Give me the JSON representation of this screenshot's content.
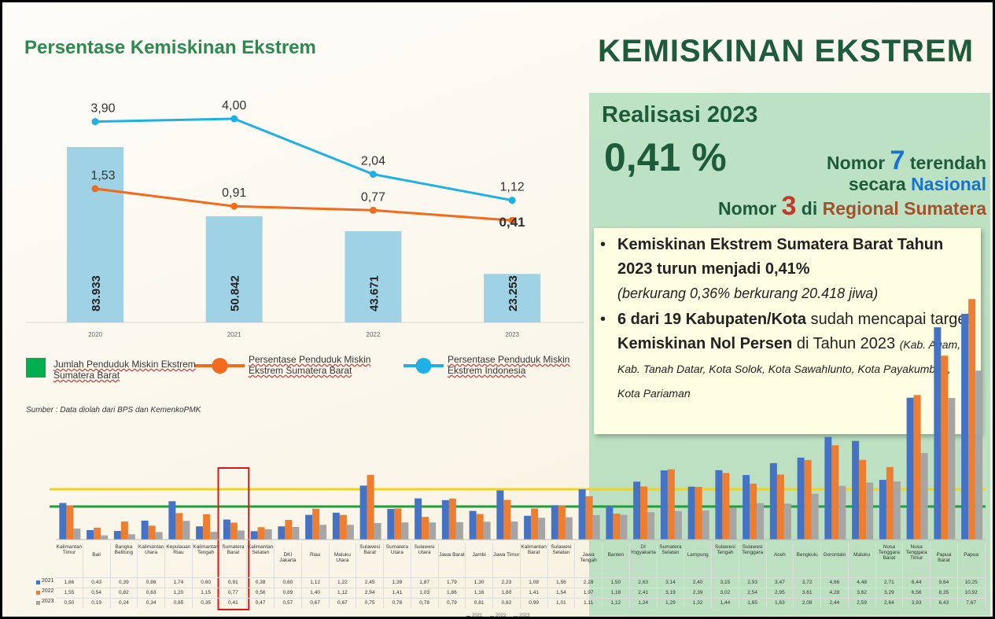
{
  "title": "Persentase Kemiskinan Ekstrem",
  "heading": "KEMISKINAN EKSTREM",
  "source": "Sumber : Data diolah dari BPS dan KemenkoPMK",
  "panel": {
    "realisasi": "Realisasi 2023",
    "value": "0,41 %",
    "rank_national": [
      "Nomor ",
      "7",
      " terendah"
    ],
    "rank_national_2": [
      "secara ",
      "Nasional"
    ],
    "rank_regional": [
      "Nomor ",
      "3",
      " di ",
      "Regional Sumatera"
    ],
    "bullet_1": [
      "Kemiskinan Ekstrem Sumatera Barat Tahun 2023 turun menjadi 0,41%",
      "(berkurang 0,36% berkurang 20.418 jiwa)"
    ],
    "bullet_2": [
      "6 dari 19 Kabupaten/Kota",
      " sudah mencapai target ",
      "Kemiskinan Nol Persen",
      " di Tahun 2023 ",
      "(Kab. Agam, Kab. Tanah Datar, Kota Solok, Kota Sawahlunto, Kota Payakumbuh, Kota Pariaman"
    ]
  },
  "chart_data": [
    {
      "type": "bar-line",
      "categories": [
        "2020",
        "2021",
        "2022",
        "2023"
      ],
      "series": [
        {
          "name": "Jumlah Penduduk Miskin Ekstrem Sumatera Barat",
          "type": "bar",
          "color": "#9fd2e4",
          "legend_color": "#00b050",
          "values": [
            83933,
            50842,
            43671,
            23253
          ],
          "value_labels": [
            "83.933",
            "50.842",
            "43.671",
            "23.253"
          ]
        },
        {
          "name": "Persentase Penduduk Miskin Ekstrem Sumatera Barat",
          "type": "line",
          "color": "#f26b1d",
          "values": [
            1.53,
            0.91,
            0.77,
            0.41
          ],
          "value_labels": [
            "1,53",
            "0,91",
            "0,77",
            "0,41"
          ]
        },
        {
          "name": "Persentase Penduduk Miskin Ekstrem Indonesia",
          "type": "line",
          "color": "#1fb0e6",
          "values": [
            3.9,
            4.0,
            2.04,
            1.12
          ],
          "value_labels": [
            "3,90",
            "4,00",
            "2,04",
            "1,12"
          ]
        }
      ]
    },
    {
      "type": "bar",
      "categories": [
        "Kalimantan Timur",
        "Bali",
        "Bangka Belitung",
        "Kalimantan Utara",
        "Kepulauan Riau",
        "Kalimantan Tengah",
        "Sumatera Barat",
        "Kalimantan Selatan",
        "DKI Jakarta",
        "Riau",
        "Maluku Utara",
        "Sulawesi Barat",
        "Sumatera Utara",
        "Sulawesi Utara",
        "Jawa Barat",
        "Jambi",
        "Jawa Timur",
        "Kalimantan Barat",
        "Sulawesi Selatan",
        "Jawa Tengah",
        "Banten",
        "DI Yogyakarta",
        "Sumatera Selatan",
        "Lampung",
        "Sulawesi Tengah",
        "Sulawesi Tenggara",
        "Aceh",
        "Bengkulu",
        "Gorontalo",
        "Maluku",
        "Nusa Tenggara Barat",
        "Nusa Tenggara Timur",
        "Papua Barat",
        "Papua"
      ],
      "highlight": "Sumatera Barat",
      "series": [
        {
          "name": "2021",
          "color": "#4472c4",
          "values": [
            1.66,
            0.43,
            0.39,
            0.86,
            1.74,
            0.6,
            0.91,
            0.38,
            0.6,
            1.12,
            1.22,
            2.45,
            1.39,
            1.87,
            1.79,
            1.3,
            2.23,
            1.08,
            1.56,
            2.28,
            1.5,
            2.63,
            3.14,
            2.4,
            3.15,
            2.93,
            3.47,
            3.72,
            4.66,
            4.48,
            2.71,
            6.44,
            9.64,
            10.25
          ],
          "value_labels": [
            "1,66",
            "0,43",
            "0,39",
            "0,86",
            "1,74",
            "0,60",
            "0,91",
            "0,38",
            "0,60",
            "1,12",
            "1,22",
            "2,45",
            "1,39",
            "1,87",
            "1,79",
            "1,30",
            "2,23",
            "1,08",
            "1,56",
            "2,28",
            "1,50",
            "2,63",
            "3,14",
            "2,40",
            "3,15",
            "2,93",
            "3,47",
            "3,72",
            "4,66",
            "4,48",
            "2,71",
            "6,44",
            "9,64",
            "10,25"
          ]
        },
        {
          "name": "2022",
          "color": "#ed7d31",
          "values": [
            1.55,
            0.54,
            0.82,
            0.63,
            1.2,
            1.15,
            0.77,
            0.56,
            0.89,
            1.4,
            1.12,
            2.94,
            1.41,
            1.03,
            1.86,
            1.16,
            1.8,
            1.41,
            1.54,
            1.97,
            1.18,
            2.41,
            3.19,
            2.39,
            3.02,
            2.54,
            2.95,
            3.61,
            4.28,
            3.62,
            3.29,
            6.56,
            8.35,
            10.92
          ],
          "value_labels": [
            "1,55",
            "0,54",
            "0,82",
            "0,63",
            "1,20",
            "1,15",
            "0,77",
            "0,56",
            "0,89",
            "1,40",
            "1,12",
            "2,94",
            "1,41",
            "1,03",
            "1,86",
            "1,16",
            "1,80",
            "1,41",
            "1,54",
            "1,97",
            "1,18",
            "2,41",
            "3,19",
            "2,39",
            "3,02",
            "2,54",
            "2,95",
            "3,61",
            "4,28",
            "3,62",
            "3,29",
            "6,56",
            "8,35",
            "10,92"
          ]
        },
        {
          "name": "2023",
          "color": "#a5a5a5",
          "values": [
            0.5,
            0.19,
            0.24,
            0.34,
            0.85,
            0.35,
            0.41,
            0.47,
            0.57,
            0.67,
            0.67,
            0.75,
            0.78,
            0.78,
            0.79,
            0.81,
            0.82,
            0.99,
            1.01,
            1.11,
            1.12,
            1.24,
            1.29,
            1.32,
            1.44,
            1.65,
            1.63,
            2.08,
            2.44,
            2.59,
            2.64,
            3.93,
            6.43,
            7.67
          ],
          "value_labels": [
            "0,50",
            "0,19",
            "0,24",
            "0,34",
            "0,85",
            "0,35",
            "0,41",
            "0,47",
            "0,57",
            "0,67",
            "0,67",
            "0,75",
            "0,78",
            "0,78",
            "0,79",
            "0,81",
            "0,82",
            "0,99",
            "1,01",
            "1,11",
            "1,12",
            "1,24",
            "1,29",
            "1,32",
            "1,44",
            "1,65",
            "1,63",
            "2,08",
            "2,44",
            "2,59",
            "2,64",
            "3,93",
            "6,43",
            "7,67"
          ]
        }
      ]
    }
  ]
}
